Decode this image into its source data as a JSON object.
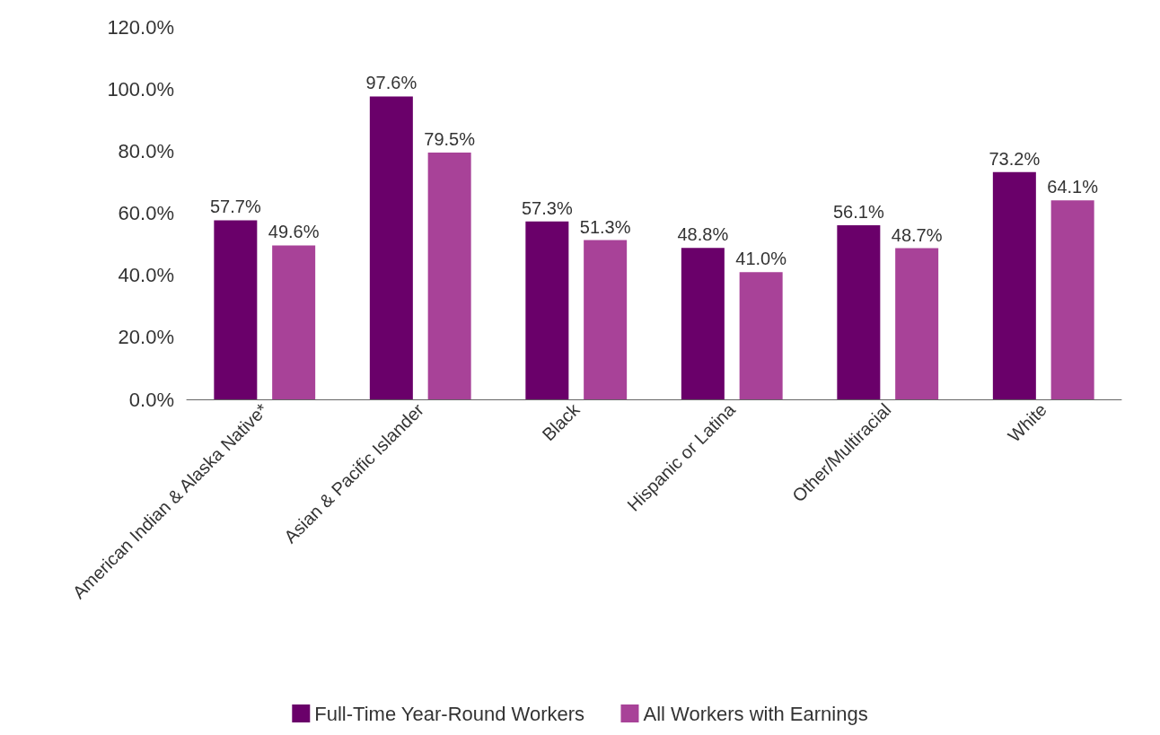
{
  "chart_data": {
    "type": "bar",
    "categories": [
      "American Indian & Alaska Native*",
      "Asian & Pacific Islander",
      "Black",
      "Hispanic or Latina",
      "Other/Multiracial",
      "White"
    ],
    "series": [
      {
        "name": "Full-Time Year-Round Workers",
        "color": "#6a006a",
        "values": [
          57.7,
          97.6,
          57.3,
          48.8,
          56.1,
          73.2
        ],
        "value_labels": [
          "57.7%",
          "97.6%",
          "57.3%",
          "48.8%",
          "56.1%",
          "73.2%"
        ]
      },
      {
        "name": "All Workers with Earnings",
        "color": "#a84298",
        "values": [
          49.6,
          79.5,
          51.3,
          41.0,
          48.7,
          64.1
        ],
        "value_labels": [
          "49.6%",
          "79.5%",
          "51.3%",
          "41.0%",
          "48.7%",
          "64.1%"
        ]
      }
    ],
    "ylim": [
      0,
      120
    ],
    "yticks": [
      {
        "value": 0,
        "label": "0.0%"
      },
      {
        "value": 20,
        "label": "20.0%"
      },
      {
        "value": 40,
        "label": "40.0%"
      },
      {
        "value": 60,
        "label": "60.0%"
      },
      {
        "value": 80,
        "label": "80.0%"
      },
      {
        "value": 100,
        "label": "100.0%"
      },
      {
        "value": 120,
        "label": "120.0%"
      }
    ],
    "grid": false,
    "legend": "bottom"
  }
}
